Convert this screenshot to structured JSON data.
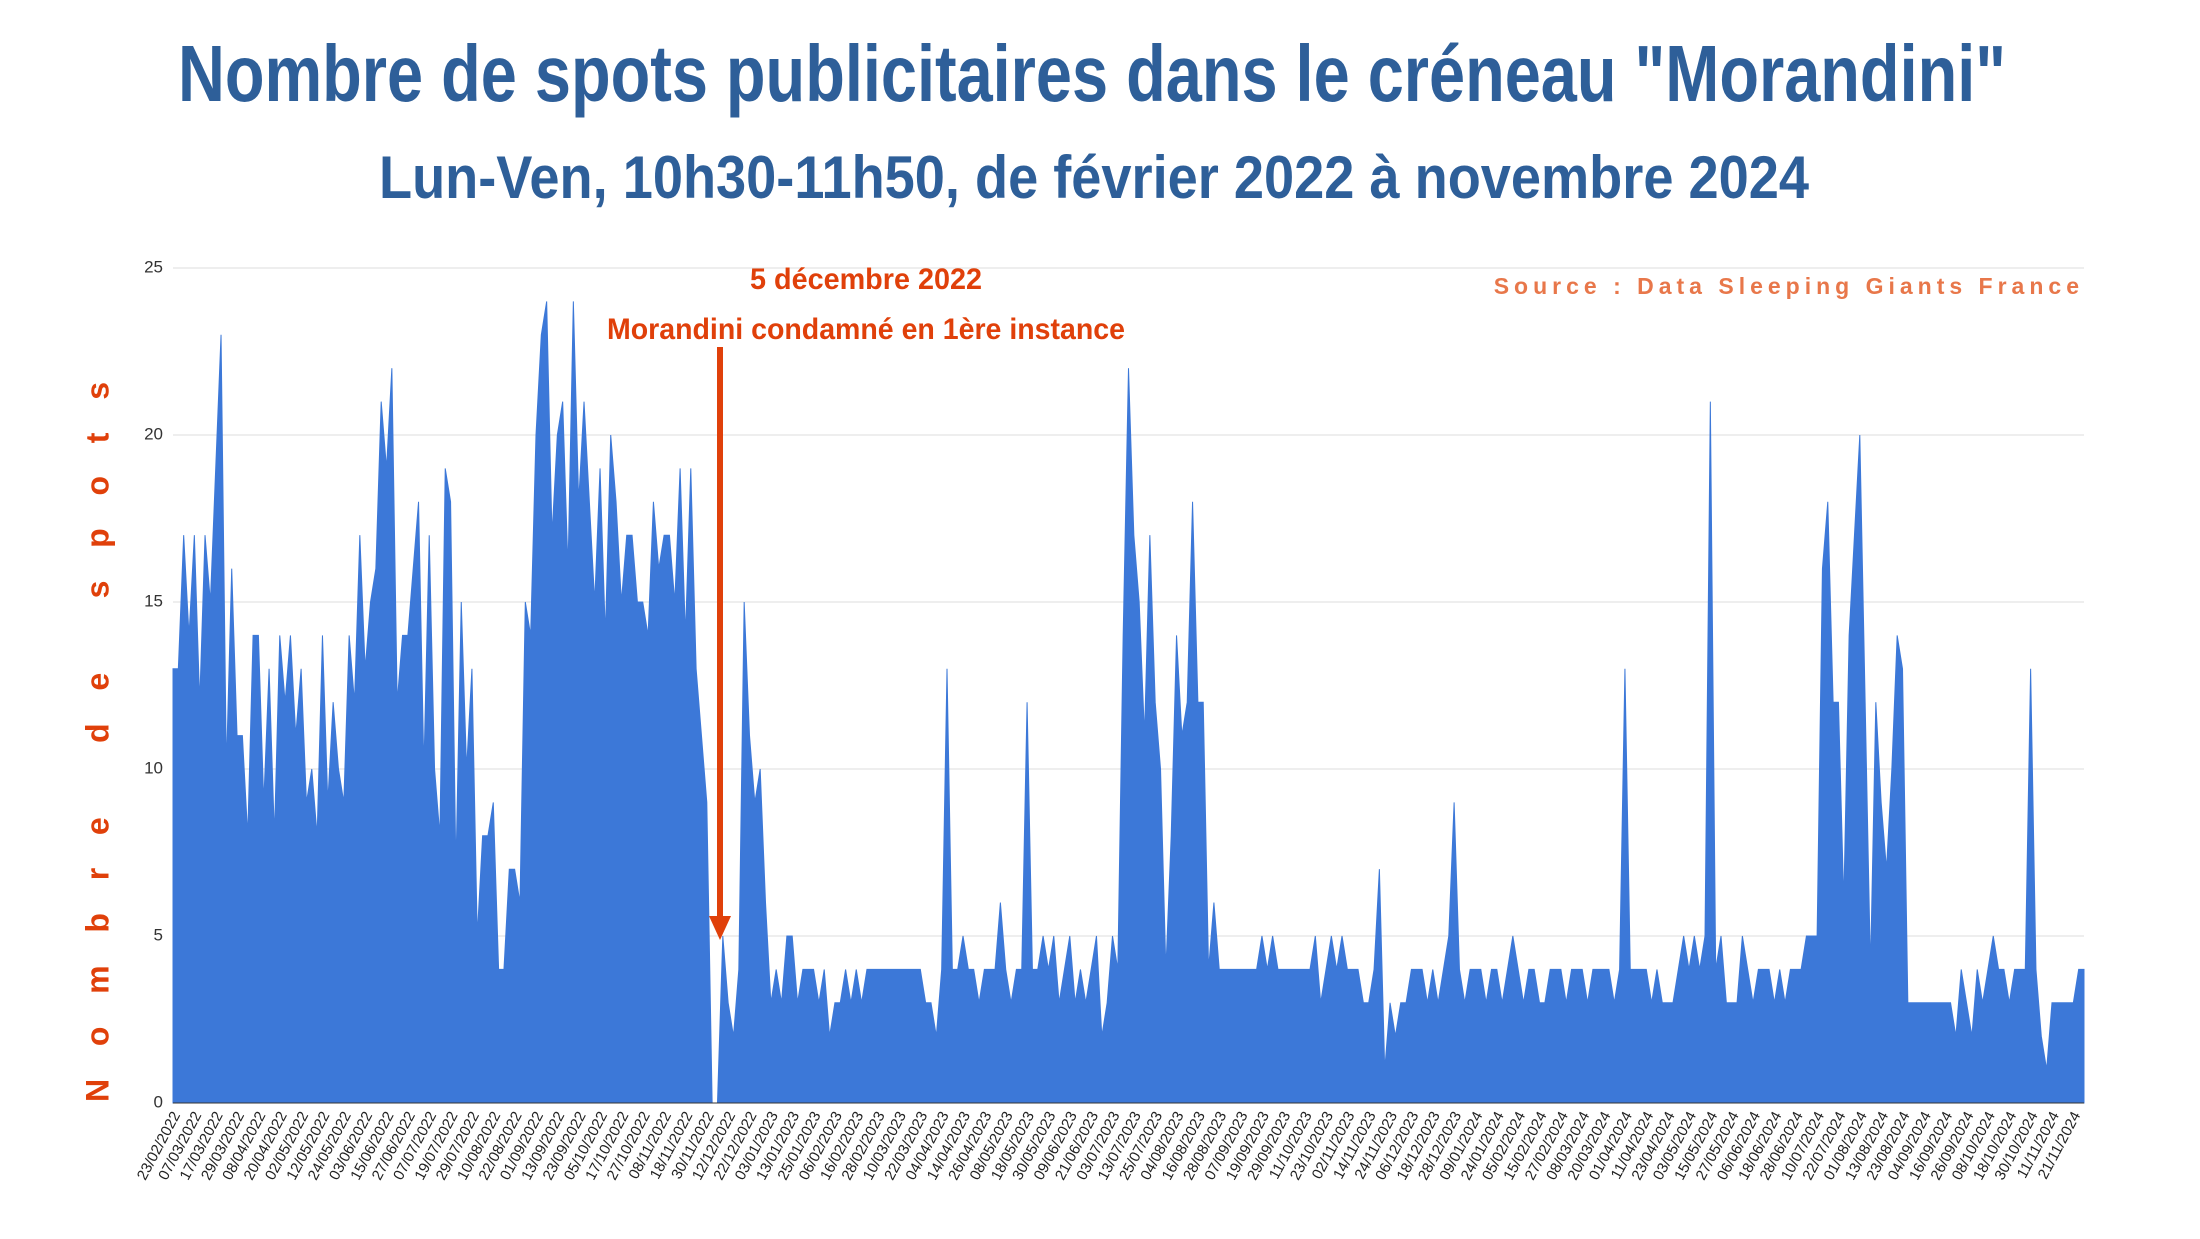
{
  "chart_data": {
    "type": "area",
    "title": "Nombre de spots publicitaires dans le créneau \"Morandini\"",
    "subtitle": "Lun-Ven, 10h30-11h50, de février 2022 à novembre 2024",
    "y_label": "Nombre de spots",
    "source": "Source : Data Sleeping Giants France",
    "annotations": [
      "5 décembre 2022",
      "Morandini condamné en 1ère instance"
    ],
    "color": "#3c78d8",
    "ylim": [
      0,
      25
    ],
    "yticks": [
      0,
      5,
      10,
      15,
      20,
      25
    ],
    "grid": true,
    "categories": [
      "23/02/2022",
      null,
      null,
      null,
      "07/03/2022",
      null,
      null,
      null,
      "17/03/2022",
      null,
      null,
      null,
      "29/03/2022",
      null,
      null,
      null,
      "08/04/2022",
      null,
      null,
      null,
      "20/04/2022",
      null,
      null,
      null,
      "02/05/2022",
      null,
      null,
      null,
      "12/05/2022",
      null,
      null,
      null,
      "24/05/2022",
      null,
      null,
      null,
      "03/06/2022",
      null,
      null,
      null,
      "15/06/2022",
      null,
      null,
      null,
      "27/06/2022",
      null,
      null,
      null,
      "07/07/2022",
      null,
      null,
      null,
      "19/07/2022",
      null,
      null,
      null,
      "29/07/2022",
      null,
      null,
      null,
      "10/08/2022",
      null,
      null,
      null,
      "22/08/2022",
      null,
      null,
      null,
      "01/09/2022",
      null,
      null,
      null,
      "13/09/2022",
      null,
      null,
      null,
      "23/09/2022",
      null,
      null,
      null,
      "05/10/2022",
      null,
      null,
      null,
      "17/10/2022",
      null,
      null,
      null,
      "27/10/2022",
      null,
      null,
      null,
      "08/11/2022",
      null,
      null,
      null,
      "18/11/2022",
      null,
      null,
      null,
      "30/11/2022",
      null,
      null,
      null,
      "12/12/2022",
      null,
      null,
      null,
      "22/12/2022",
      null,
      null,
      null,
      "03/01/2023",
      null,
      null,
      null,
      "13/01/2023",
      null,
      null,
      null,
      "25/01/2023",
      null,
      null,
      null,
      "06/02/2023",
      null,
      null,
      null,
      "16/02/2023",
      null,
      null,
      null,
      "28/02/2023",
      null,
      null,
      null,
      "10/03/2023",
      null,
      null,
      null,
      "22/03/2023",
      null,
      null,
      null,
      "04/04/2023",
      null,
      null,
      null,
      "14/04/2023",
      null,
      null,
      null,
      "26/04/2023",
      null,
      null,
      null,
      "08/05/2023",
      null,
      null,
      null,
      "18/05/2023",
      null,
      null,
      null,
      "30/05/2023",
      null,
      null,
      null,
      "09/06/2023",
      null,
      null,
      null,
      "21/06/2023",
      null,
      null,
      null,
      "03/07/2023",
      null,
      null,
      null,
      "13/07/2023",
      null,
      null,
      null,
      "25/07/2023",
      null,
      null,
      null,
      "04/08/2023",
      null,
      null,
      null,
      "16/08/2023",
      null,
      null,
      null,
      "28/08/2023",
      null,
      null,
      null,
      "07/09/2023",
      null,
      null,
      null,
      "19/09/2023",
      null,
      null,
      null,
      "29/09/2023",
      null,
      null,
      null,
      "11/10/2023",
      null,
      null,
      null,
      "23/10/2023",
      null,
      null,
      null,
      "02/11/2023",
      null,
      null,
      null,
      "14/11/2023",
      null,
      null,
      null,
      "24/11/2023",
      null,
      null,
      null,
      "06/12/2023",
      null,
      null,
      null,
      "18/12/2023",
      null,
      null,
      null,
      "28/12/2023",
      null,
      null,
      null,
      "09/01/2024",
      null,
      null,
      null,
      "24/01/2024",
      null,
      null,
      null,
      "05/02/2024",
      null,
      null,
      null,
      "15/02/2024",
      null,
      null,
      null,
      "27/02/2024",
      null,
      null,
      null,
      "08/03/2024",
      null,
      null,
      null,
      "20/03/2024",
      null,
      null,
      null,
      "01/04/2024",
      null,
      null,
      null,
      "11/04/2024",
      null,
      null,
      null,
      "23/04/2024",
      null,
      null,
      null,
      "03/05/2024",
      null,
      null,
      null,
      "15/05/2024",
      null,
      null,
      null,
      "27/05/2024",
      null,
      null,
      null,
      "06/06/2024",
      null,
      null,
      null,
      "18/06/2024",
      null,
      null,
      null,
      "28/06/2024",
      null,
      null,
      null,
      "10/07/2024",
      null,
      null,
      null,
      "22/07/2024",
      null,
      null,
      null,
      "01/08/2024",
      null,
      null,
      null,
      "13/08/2024",
      null,
      null,
      null,
      "23/08/2024",
      null,
      null,
      null,
      "04/09/2024",
      null,
      null,
      null,
      "16/09/2024",
      null,
      null,
      null,
      "26/09/2024",
      null,
      null,
      null,
      "08/10/2024",
      null,
      null,
      null,
      "18/10/2024",
      null,
      null,
      null,
      "30/10/2024",
      null,
      null,
      null,
      "11/11/2024",
      null,
      null,
      null,
      "21/11/2024",
      null,
      null
    ],
    "values": [
      13,
      13,
      17,
      14,
      17,
      12,
      17,
      15,
      19,
      23,
      10,
      16,
      11,
      11,
      8,
      14,
      14,
      9,
      13,
      8,
      14,
      12,
      14,
      11,
      13,
      9,
      10,
      8,
      14,
      9,
      12,
      10,
      9,
      14,
      12,
      17,
      13,
      15,
      16,
      21,
      19,
      22,
      12,
      14,
      14,
      16,
      18,
      10,
      17,
      10,
      8,
      19,
      18,
      7,
      15,
      10,
      13,
      5,
      8,
      8,
      9,
      4,
      4,
      7,
      7,
      6,
      15,
      14,
      20,
      23,
      24,
      17,
      20,
      21,
      16,
      24,
      18,
      21,
      18,
      15,
      19,
      14,
      20,
      18,
      15,
      17,
      17,
      15,
      15,
      14,
      18,
      16,
      17,
      17,
      15,
      19,
      14,
      19,
      13,
      11,
      9,
      0,
      0,
      5,
      3,
      2,
      4,
      15,
      11,
      9,
      10,
      6,
      3,
      4,
      3,
      5,
      5,
      3,
      4,
      4,
      4,
      3,
      4,
      2,
      3,
      3,
      4,
      3,
      4,
      3,
      4,
      4,
      4,
      4,
      4,
      4,
      4,
      4,
      4,
      4,
      4,
      3,
      3,
      2,
      4,
      13,
      4,
      4,
      5,
      4,
      4,
      3,
      4,
      4,
      4,
      6,
      4,
      3,
      4,
      4,
      12,
      4,
      4,
      5,
      4,
      5,
      3,
      4,
      5,
      3,
      4,
      3,
      4,
      5,
      2,
      3,
      5,
      4,
      14,
      22,
      17,
      15,
      11,
      17,
      12,
      10,
      4,
      8,
      14,
      11,
      12,
      18,
      12,
      12,
      4,
      6,
      4,
      4,
      4,
      4,
      4,
      4,
      4,
      4,
      5,
      4,
      5,
      4,
      4,
      4,
      4,
      4,
      4,
      4,
      5,
      3,
      4,
      5,
      4,
      5,
      4,
      4,
      4,
      3,
      3,
      4,
      7,
      1,
      3,
      2,
      3,
      3,
      4,
      4,
      4,
      3,
      4,
      3,
      4,
      5,
      9,
      4,
      3,
      4,
      4,
      4,
      3,
      4,
      4,
      3,
      4,
      5,
      4,
      3,
      4,
      4,
      3,
      3,
      4,
      4,
      4,
      3,
      4,
      4,
      4,
      3,
      4,
      4,
      4,
      4,
      3,
      4,
      13,
      4,
      4,
      4,
      4,
      3,
      4,
      3,
      3,
      3,
      4,
      5,
      4,
      5,
      4,
      5,
      21,
      4,
      5,
      3,
      3,
      3,
      5,
      4,
      3,
      4,
      4,
      4,
      3,
      4,
      3,
      4,
      4,
      4,
      5,
      5,
      5,
      16,
      18,
      12,
      12,
      6,
      14,
      17,
      20,
      12,
      4,
      12,
      9,
      7,
      10,
      14,
      13,
      3,
      3,
      3,
      3,
      3,
      3,
      3,
      3,
      3,
      2,
      4,
      3,
      2,
      4,
      3,
      4,
      5,
      4,
      4,
      3,
      4,
      4,
      4,
      13,
      4,
      2,
      1,
      3,
      3,
      3,
      3,
      3,
      4,
      4
    ]
  }
}
